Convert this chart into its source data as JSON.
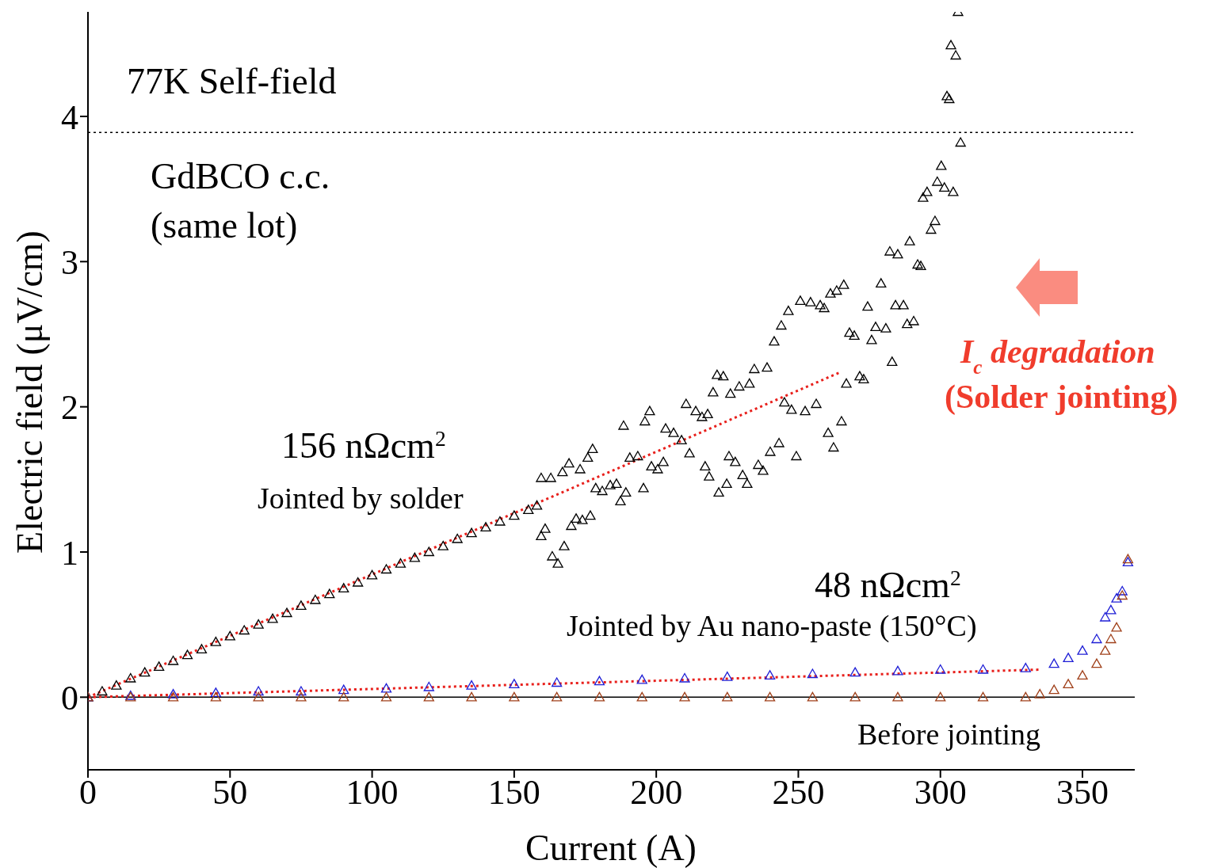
{
  "chart_data": {
    "type": "scatter",
    "xlabel": "Current (A)",
    "ylabel": "Electric field (μV/cm)",
    "xlim": [
      0,
      368.4
    ],
    "ylim": [
      -0.5,
      4.72
    ],
    "xticks": [
      0,
      50,
      100,
      150,
      200,
      250,
      300,
      350
    ],
    "yticks": [
      0,
      1,
      2,
      3,
      4
    ],
    "marker": "triangle",
    "ref_lines": [
      {
        "axis": "y",
        "value": 3.89,
        "color": "#000000",
        "line_style": "dotted"
      },
      {
        "axis": "y",
        "value": 0,
        "color": "#000000",
        "line_style": "solid"
      }
    ],
    "annotations": [
      "77K Self-field",
      "GdBCO c.c.",
      "(same lot)",
      "156 nΩcm$^{2}$",
      "Jointed by solder",
      "48 nΩcm$^{2}$",
      "Jointed by Au nano-paste (150°C)",
      "Before jointing",
      "I$_{c}$ degradation",
      "(Solder jointing)"
    ],
    "series": [
      {
        "color": "#000000",
        "x": [
          0,
          5,
          10,
          15,
          20,
          25,
          30,
          35,
          40,
          45,
          50,
          55,
          60,
          65,
          70,
          75,
          80,
          85,
          90,
          95,
          100,
          105,
          110,
          115,
          120,
          125,
          130,
          135,
          140,
          145,
          150,
          155,
          158,
          159.5,
          160.9,
          163.4,
          165.4,
          167.6,
          170.1,
          171.8,
          174,
          176.8,
          159.5,
          162.9,
          167,
          169.3,
          173.2,
          175.9,
          177.6,
          178.7,
          181,
          183.8,
          186,
          187.4,
          189.3,
          188.5,
          190.7,
          193.5,
          195.5,
          196,
          197.7,
          198.3,
          200.5,
          202.5,
          203.3,
          206.1,
          208.9,
          210.5,
          211.7,
          213.9,
          216.1,
          217.2,
          218.1,
          218.6,
          220,
          221.4,
          222,
          223.6,
          224.8,
          225.6,
          226.1,
          227.8,
          229.2,
          230.4,
          232,
          232.8,
          234.5,
          235.9,
          237.6,
          239,
          240.1,
          241.5,
          243.2,
          244,
          245.1,
          246.5,
          247.6,
          249.3,
          250.7,
          252.4,
          254.3,
          256.3,
          257.7,
          259.1,
          260.5,
          261.3,
          262.4,
          263.5,
          265.2,
          266,
          266.9,
          268,
          269.7,
          271.6,
          273,
          274.4,
          275.8,
          277.2,
          279.1,
          280.8,
          282.2,
          283,
          284.2,
          285,
          287,
          288.3,
          289.2,
          290.6,
          292,
          293.1,
          293.9,
          295.3,
          296.7,
          298.1,
          298.9,
          300.3,
          301.4,
          302.3,
          303.1,
          303.7,
          304.5,
          305.4,
          306.2,
          307.1
        ],
        "values": [
          0,
          0.04,
          0.08,
          0.13,
          0.17,
          0.21,
          0.25,
          0.29,
          0.33,
          0.38,
          0.42,
          0.46,
          0.5,
          0.54,
          0.58,
          0.63,
          0.67,
          0.71,
          0.75,
          0.79,
          0.84,
          0.88,
          0.92,
          0.96,
          1,
          1.04,
          1.09,
          1.13,
          1.17,
          1.21,
          1.25,
          1.29,
          1.32,
          1.11,
          1.16,
          0.97,
          0.92,
          1.04,
          1.18,
          1.23,
          1.22,
          1.25,
          1.51,
          1.51,
          1.55,
          1.61,
          1.57,
          1.65,
          1.71,
          1.44,
          1.42,
          1.46,
          1.47,
          1.35,
          1.41,
          1.87,
          1.65,
          1.66,
          1.44,
          1.9,
          1.97,
          1.59,
          1.57,
          1.62,
          1.85,
          1.82,
          1.77,
          2.02,
          1.68,
          1.97,
          1.93,
          1.59,
          1.95,
          1.52,
          2.1,
          2.22,
          1.41,
          2.21,
          1.47,
          1.66,
          2.09,
          1.62,
          2.14,
          1.53,
          1.47,
          2.16,
          2.26,
          1.6,
          1.56,
          2.27,
          1.69,
          2.45,
          1.75,
          2.56,
          2.03,
          2.66,
          1.98,
          1.66,
          2.73,
          1.97,
          2.72,
          2.02,
          2.7,
          2.68,
          1.82,
          2.78,
          1.72,
          2.8,
          1.9,
          2.84,
          2.16,
          2.51,
          2.49,
          2.21,
          2.19,
          2.69,
          2.46,
          2.55,
          2.85,
          2.54,
          3.07,
          2.31,
          2.7,
          3.05,
          2.7,
          2.57,
          3.14,
          2.59,
          2.98,
          2.97,
          3.44,
          3.48,
          3.22,
          3.28,
          3.55,
          3.66,
          3.51,
          4.14,
          4.12,
          4.49,
          3.48,
          4.42,
          4.72,
          3.82
        ]
      },
      {
        "color": "#1f1fd6",
        "x": [
          0,
          15,
          30,
          45,
          60,
          75,
          90,
          105,
          120,
          135,
          150,
          165,
          180,
          195,
          210,
          225,
          240,
          255,
          270,
          285,
          300,
          315,
          330,
          340,
          345,
          350,
          355,
          358,
          360,
          362,
          364,
          366
        ],
        "values": [
          0,
          0.01,
          0.02,
          0.03,
          0.04,
          0.04,
          0.05,
          0.06,
          0.07,
          0.08,
          0.09,
          0.1,
          0.11,
          0.12,
          0.13,
          0.14,
          0.15,
          0.16,
          0.17,
          0.18,
          0.19,
          0.19,
          0.2,
          0.23,
          0.27,
          0.32,
          0.4,
          0.55,
          0.6,
          0.68,
          0.73,
          0.93
        ]
      },
      {
        "color": "#a0401a",
        "x": [
          0,
          15,
          30,
          45,
          60,
          75,
          90,
          105,
          120,
          135,
          150,
          165,
          180,
          195,
          210,
          225,
          240,
          255,
          270,
          285,
          300,
          315,
          330,
          335,
          340,
          345,
          350,
          355,
          358,
          360,
          362,
          364,
          366
        ],
        "values": [
          0,
          0,
          0,
          0,
          0,
          0,
          0,
          0,
          0,
          0,
          0,
          0,
          0,
          0,
          0,
          0,
          0,
          0,
          0,
          0,
          0,
          0,
          0,
          0.02,
          0.05,
          0.09,
          0.15,
          0.23,
          0.32,
          0.4,
          0.48,
          0.7,
          0.95
        ]
      },
      {
        "type": "line",
        "marker": "none",
        "color": "#e8201c",
        "line_style": "dotted",
        "x": [
          0,
          265
        ],
        "values": [
          0,
          2.24
        ]
      },
      {
        "type": "line",
        "marker": "none",
        "color": "#e8201c",
        "line_style": "dotted",
        "x": [
          0,
          335
        ],
        "values": [
          0,
          0.19
        ]
      }
    ]
  }
}
